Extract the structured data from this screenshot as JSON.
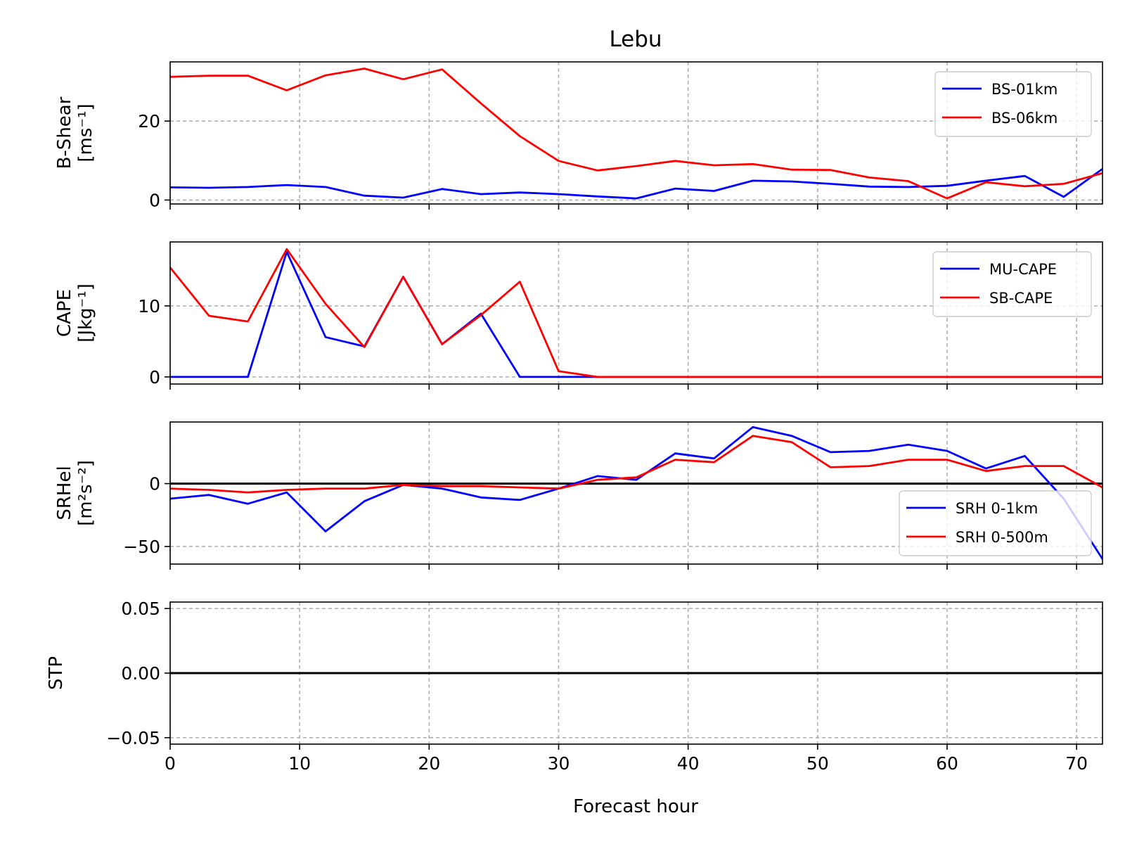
{
  "chart_data": {
    "title": "Lebu",
    "xlabel": "Forecast hour",
    "xlim": [
      0,
      72
    ],
    "xticks": [
      0,
      10,
      20,
      30,
      40,
      50,
      60,
      70
    ],
    "x": [
      0,
      3,
      6,
      9,
      12,
      15,
      18,
      21,
      24,
      27,
      30,
      33,
      36,
      39,
      42,
      45,
      48,
      51,
      54,
      57,
      60,
      63,
      66,
      69,
      72
    ],
    "grid": true,
    "panels": [
      {
        "type": "line",
        "ylabel_line1": "B-Shear",
        "ylabel_line2": "[ms⁻¹]",
        "ylim": [
          -1,
          35
        ],
        "yticks": [
          0,
          20
        ],
        "zero_line": false,
        "legend_position": "upper right",
        "series": [
          {
            "name": "BS-01km",
            "color": "#0000ff",
            "values": [
              3.2,
              3.1,
              3.3,
              3.8,
              3.3,
              1.1,
              0.6,
              2.8,
              1.5,
              1.9,
              1.5,
              0.9,
              0.4,
              2.9,
              2.3,
              4.9,
              4.7,
              4.1,
              3.4,
              3.3,
              3.6,
              4.9,
              6.1,
              0.8,
              7.9
            ]
          },
          {
            "name": "BS-06km",
            "color": "#ff0000",
            "values": [
              31.2,
              31.5,
              31.5,
              27.8,
              31.6,
              33.3,
              30.6,
              33.1,
              24.5,
              16.2,
              9.9,
              7.5,
              8.6,
              9.9,
              8.8,
              9.1,
              7.7,
              7.6,
              5.7,
              4.8,
              0.4,
              4.5,
              3.5,
              4.1,
              6.8
            ]
          }
        ]
      },
      {
        "type": "line",
        "ylabel_line1": "CAPE",
        "ylabel_line2": "[Jkg⁻¹]",
        "ylim": [
          -1,
          19
        ],
        "yticks": [
          0,
          10
        ],
        "zero_line": false,
        "legend_position": "upper right",
        "series": [
          {
            "name": "MU-CAPE",
            "color": "#0000ff",
            "values": [
              0,
              0,
              0,
              17.6,
              5.6,
              4.3,
              14.1,
              4.6,
              8.9,
              0,
              0,
              0,
              0,
              0,
              0,
              0,
              0,
              0,
              0,
              0,
              0,
              0,
              0,
              0,
              0
            ]
          },
          {
            "name": "SB-CAPE",
            "color": "#ff0000",
            "values": [
              15.4,
              8.6,
              7.8,
              18.0,
              10.3,
              4.2,
              14.1,
              4.6,
              8.7,
              13.4,
              0.8,
              0,
              0,
              0,
              0,
              0,
              0,
              0,
              0,
              0,
              0,
              0,
              0,
              0,
              0
            ]
          }
        ]
      },
      {
        "type": "line",
        "ylabel_line1": "SRHel",
        "ylabel_line2": "[m²s⁻²]",
        "ylim": [
          -64,
          49
        ],
        "yticks": [
          -50,
          0
        ],
        "zero_line": true,
        "legend_position": "lower right",
        "series": [
          {
            "name": "SRH 0-1km",
            "color": "#0000ff",
            "values": [
              -12,
              -9,
              -16,
              -7,
              -38,
              -14,
              -1,
              -4,
              -11,
              -13,
              -4,
              6,
              3,
              24,
              20,
              45,
              38,
              25,
              26,
              31,
              26,
              12,
              22,
              -12,
              -60
            ]
          },
          {
            "name": "SRH 0-500m",
            "color": "#ff0000",
            "values": [
              -4,
              -5,
              -7,
              -5,
              -4,
              -4,
              -1,
              -2,
              -2,
              -3,
              -4,
              3,
              5,
              19,
              17,
              38,
              33,
              13,
              14,
              19,
              19,
              10,
              14,
              14,
              -3
            ]
          }
        ]
      },
      {
        "type": "line",
        "ylabel_line1": "STP",
        "ylabel_line2": "",
        "ylim": [
          -0.055,
          0.055
        ],
        "yticks": [
          -0.05,
          0.0,
          0.05
        ],
        "ytick_labels": [
          "−0.05",
          "0.00",
          "0.05"
        ],
        "zero_line": true,
        "legend_position": "",
        "series": []
      }
    ]
  }
}
